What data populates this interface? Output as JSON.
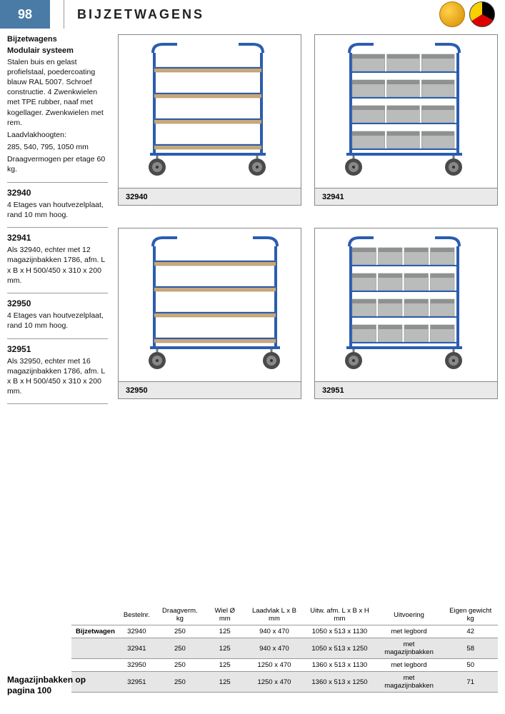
{
  "header": {
    "page_number": "98",
    "title": "BIJZETWAGENS"
  },
  "sidebar": {
    "heading_line1": "Bijzetwagens",
    "heading_line2": "Modulair systeem",
    "intro": "Stalen buis en gelast profielstaal, poedercoating blauw RAL 5007. Schroef constructie. 4 Zwenkwielen met TPE rubber, naaf met kogellager. Zwenkwielen met rem.",
    "heights_label": "Laadvlakhoogten:",
    "heights_values": "285, 540, 795, 1050 mm",
    "capacity": "Draagvermogen per etage 60 kg.",
    "items": [
      {
        "code": "32940",
        "text": "4 Etages van houtvezelplaat, rand 10 mm hoog."
      },
      {
        "code": "32941",
        "text": "Als 32940, echter met 12 magazijnbakken 1786, afm. L x B x H 500/450 x 310 x 200 mm."
      },
      {
        "code": "32950",
        "text": "4 Etages van houtvezelplaat, rand 10 mm hoog."
      },
      {
        "code": "32951",
        "text": "Als 32950, echter met 16 magazijnbakken 1786, afm. L x B x H 500/450 x 310 x 200 mm."
      }
    ]
  },
  "products": [
    {
      "caption": "32940",
      "type": "shelf",
      "cols": 1
    },
    {
      "caption": "32941",
      "type": "bins",
      "cols": 3
    },
    {
      "caption": "32950",
      "type": "shelf",
      "cols": 1,
      "wide": true
    },
    {
      "caption": "32951",
      "type": "bins",
      "cols": 4
    }
  ],
  "styles": {
    "frame_color": "#2a5db0",
    "shelf_color": "#c9a87a",
    "bin_color": "#b9bcbb",
    "bin_dark": "#8e9190",
    "wheel_rim": "#888888",
    "wheel_tyre": "#4a4a4a"
  },
  "footer": {
    "ref_line1": "Magazijnbakken op",
    "ref_line2": "pagina 100",
    "table": {
      "row_label": "Bijzetwagen",
      "columns": [
        "Bestelnr.",
        "Draagverm. kg",
        "Wiel Ø mm",
        "Laadvlak L x B mm",
        "Uitw. afm. L x B x H mm",
        "Uitvoering",
        "Eigen gewicht kg"
      ],
      "rows": [
        [
          "32940",
          "250",
          "125",
          "940 x 470",
          "1050 x 513 x 1130",
          "met legbord",
          "42"
        ],
        [
          "32941",
          "250",
          "125",
          "940 x 470",
          "1050 x 513 x 1250",
          "met magazijnbakken",
          "58"
        ],
        [
          "32950",
          "250",
          "125",
          "1250 x 470",
          "1360 x 513 x 1130",
          "met legbord",
          "50"
        ],
        [
          "32951",
          "250",
          "125",
          "1250 x 470",
          "1360 x 513 x 1250",
          "met magazijnbakken",
          "71"
        ]
      ]
    }
  }
}
